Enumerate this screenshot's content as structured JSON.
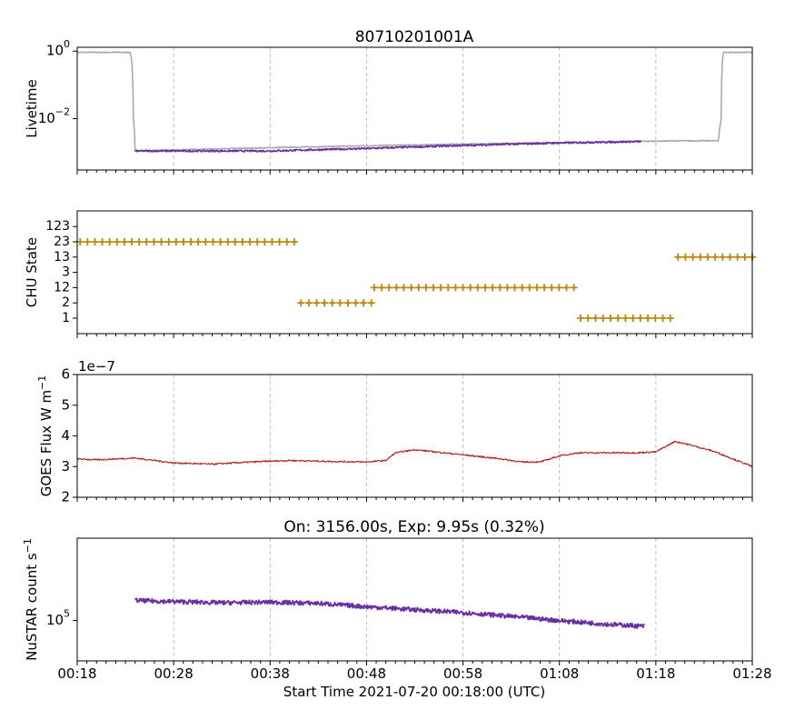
{
  "figure": {
    "xlabel": "Start Time 2021-07-20 00:18:00 (UTC)",
    "x_tick_labels": [
      "00:18",
      "00:28",
      "00:38",
      "00:48",
      "00:58",
      "01:08",
      "01:18",
      "01:28"
    ]
  },
  "colors": {
    "livetime_gray": "#aaaaaa",
    "purple": "#6a2fa0",
    "chu_gold": "#b8860b",
    "goes_red": "#b22222",
    "grid": "#b0b0b0"
  },
  "chart_data": [
    {
      "type": "line",
      "title": "80710201001A",
      "ylabel": "Livetime",
      "yscale": "log",
      "ylim": [
        0.0003,
        1.3
      ],
      "yticks": [
        {
          "value": 1,
          "label": "10^0"
        },
        {
          "value": 0.01,
          "label": "10^-2"
        }
      ],
      "xlim_minutes": [
        0,
        70
      ],
      "grid_x": true,
      "series": [
        {
          "color": "gray",
          "points": [
            [
              0,
              0.92
            ],
            [
              5.5,
              0.92
            ],
            [
              5.8,
              0.01
            ],
            [
              6.0,
              0.0011
            ],
            [
              62.5,
              0.0022
            ],
            [
              66.5,
              0.0022
            ],
            [
              66.8,
              0.01
            ],
            [
              67.0,
              0.92
            ],
            [
              70,
              0.92
            ]
          ]
        },
        {
          "color": "purple",
          "points": [
            [
              6.0,
              0.0011
            ],
            [
              20,
              0.0011
            ],
            [
              30,
              0.0013
            ],
            [
              40,
              0.0016
            ],
            [
              50,
              0.0019
            ],
            [
              58.5,
              0.0021
            ]
          ]
        }
      ]
    },
    {
      "type": "scatter",
      "ylabel": "CHU State",
      "marker": "+",
      "y_categories": [
        "1",
        "2",
        "12",
        "3",
        "13",
        "23",
        "123"
      ],
      "xlim_minutes": [
        0,
        70
      ],
      "grid_x": false,
      "segments": [
        {
          "state": "23",
          "x_start": 0.3,
          "x_end": 22.5
        },
        {
          "state": "2",
          "x_start": 23.2,
          "x_end": 30.5
        },
        {
          "state": "12",
          "x_start": 30.8,
          "x_end": 51.5
        },
        {
          "state": "1",
          "x_start": 52.2,
          "x_end": 61.5
        },
        {
          "state": "13",
          "x_start": 62.3,
          "x_end": 70
        }
      ]
    },
    {
      "type": "line",
      "ylabel": "GOES Flux W m^-1",
      "y_offset_label": "1e−7",
      "ylim": [
        2,
        6
      ],
      "yticks": [
        2,
        3,
        4,
        5,
        6
      ],
      "xlim_minutes": [
        0,
        70
      ],
      "grid_x": true,
      "series": [
        {
          "color": "red",
          "points": [
            [
              0,
              3.25
            ],
            [
              2,
              3.22
            ],
            [
              6,
              3.28
            ],
            [
              10,
              3.12
            ],
            [
              14,
              3.08
            ],
            [
              18,
              3.15
            ],
            [
              22,
              3.2
            ],
            [
              26,
              3.17
            ],
            [
              30,
              3.15
            ],
            [
              32,
              3.2
            ],
            [
              33,
              3.45
            ],
            [
              35,
              3.55
            ],
            [
              38,
              3.45
            ],
            [
              41,
              3.35
            ],
            [
              44,
              3.25
            ],
            [
              46,
              3.15
            ],
            [
              48,
              3.15
            ],
            [
              50,
              3.35
            ],
            [
              52,
              3.45
            ],
            [
              55,
              3.45
            ],
            [
              58,
              3.45
            ],
            [
              60,
              3.48
            ],
            [
              61,
              3.65
            ],
            [
              62,
              3.82
            ],
            [
              63,
              3.75
            ],
            [
              66,
              3.5
            ],
            [
              68,
              3.25
            ],
            [
              70,
              3.0
            ]
          ]
        }
      ]
    },
    {
      "type": "line",
      "title": "On: 3156.00s, Exp: 9.95s (0.32%)",
      "ylabel": "NuSTAR count s^-1",
      "yscale": "log",
      "ylim": [
        40000,
        650000
      ],
      "yticks": [
        {
          "value": 100000,
          "label": "10^5"
        }
      ],
      "xlim_minutes": [
        0,
        70
      ],
      "grid_x": true,
      "series": [
        {
          "color": "purple",
          "points": [
            [
              6.0,
              158000
            ],
            [
              10,
              154000
            ],
            [
              15,
              150000
            ],
            [
              20,
              152000
            ],
            [
              25,
              148000
            ],
            [
              30,
              137000
            ],
            [
              35,
              128000
            ],
            [
              40,
              120000
            ],
            [
              45,
              110000
            ],
            [
              50,
              100000
            ],
            [
              55,
              92000
            ],
            [
              58.8,
              88000
            ]
          ]
        }
      ]
    }
  ]
}
